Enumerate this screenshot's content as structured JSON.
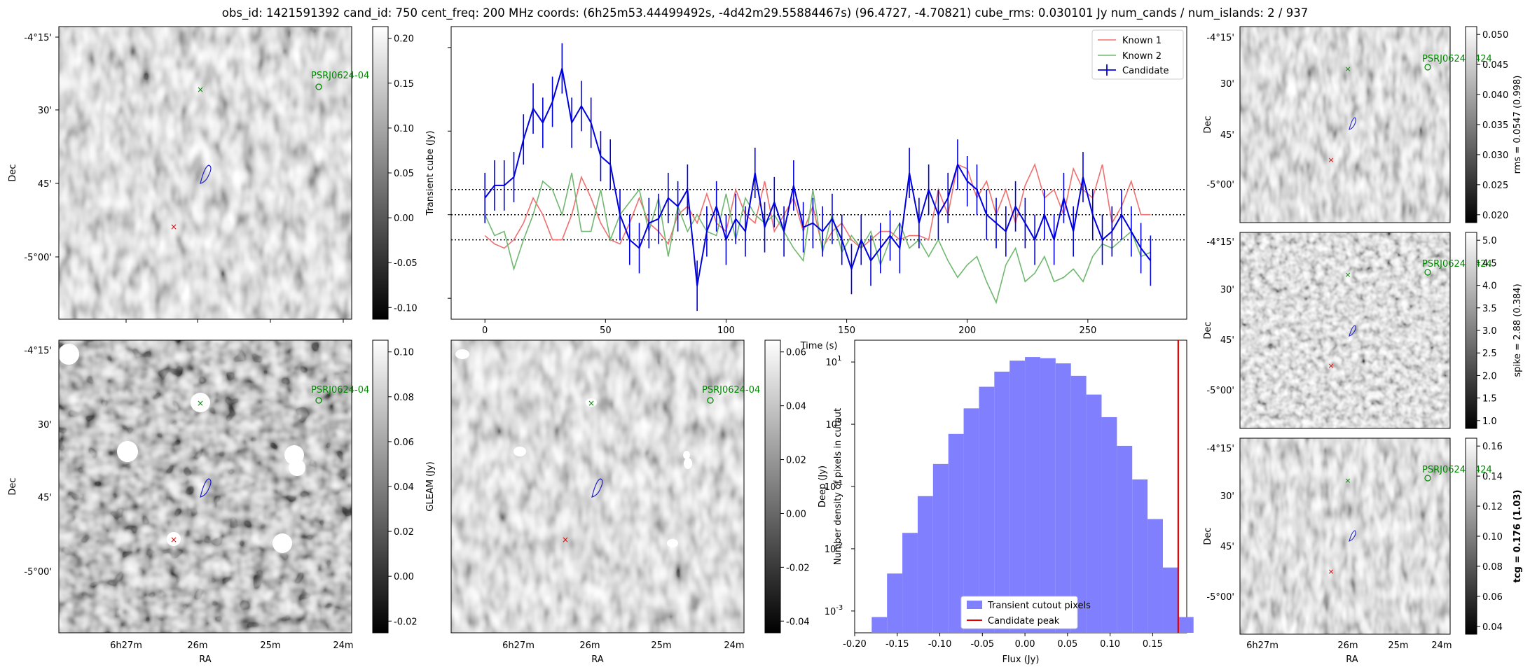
{
  "title": "obs_id: 1421591392 cand_id: 750 cent_freq: 200 MHz coords: (6h25m53.44499492s, -4d42m29.55884467s) (96.4727, -4.70821) cube_rms: 0.030101 Jy num_cands / num_islands: 2 / 937",
  "colors": {
    "known1": "#f07070",
    "known2": "#70b870",
    "candidate": "#0000dd",
    "hist": "#8080ff",
    "peak": "#e00000",
    "marker_green": "#008800",
    "marker_red": "#dd0000",
    "contour": "#2020cc"
  },
  "sky": {
    "dec_ticks": [
      "-4°15'",
      "30'",
      "45'",
      "-5°00'"
    ],
    "ra_ticks": [
      "6h27m",
      "26m",
      "25m",
      "24m"
    ],
    "xlabel": "RA",
    "ylabel": "Dec",
    "pulsar_label": "PSRJ0624-0424",
    "pulsar_label_mid": "PSRJ0624-04",
    "pulsar_label_short": "PSRJ0624-04"
  },
  "panels": {
    "top_left": {
      "cbar_ticks": [
        "0.20",
        "0.15",
        "0.10",
        "0.05",
        "0.00",
        "-0.05",
        "-0.10"
      ],
      "cbar_label": ""
    },
    "bottom_left": {
      "cbar_ticks": [
        "0.10",
        "0.08",
        "0.06",
        "0.04",
        "0.02",
        "0.00",
        "-0.02"
      ],
      "cbar_label": "GLEAM (Jy)"
    },
    "bottom_mid": {
      "cbar_ticks": [
        "0.06",
        "0.04",
        "0.02",
        "0.00",
        "-0.02",
        "-0.04"
      ],
      "cbar_label": "Deep (Jy)"
    },
    "right_top": {
      "cbar_ticks": [
        "0.050",
        "0.045",
        "0.040",
        "0.035",
        "0.030",
        "0.025",
        "0.020"
      ],
      "cbar_label": "rms = 0.0547 (0.998)"
    },
    "right_mid": {
      "cbar_ticks": [
        "5.0",
        "4.5",
        "4.0",
        "3.5",
        "3.0",
        "2.5",
        "2.0",
        "1.5",
        "1.0"
      ],
      "cbar_label": "spike = 2.88 (0.384)"
    },
    "right_bot": {
      "cbar_ticks": [
        "0.16",
        "0.14",
        "0.12",
        "0.10",
        "0.08",
        "0.06",
        "0.04"
      ],
      "cbar_label": "tcg = 0.176 (1.03)"
    }
  },
  "chart_data": [
    {
      "type": "line",
      "xlabel": "Time (s)",
      "ylabel": "Transient cube (Jy)",
      "xlim": [
        -14,
        291
      ],
      "ylim": [
        -0.125,
        0.225
      ],
      "xticks": [
        0,
        50,
        100,
        150,
        200,
        250
      ],
      "hlines": [
        0.030101,
        0,
        -0.030101
      ],
      "legend": [
        "Known 1",
        "Known 2",
        "Candidate"
      ],
      "x_step": 4,
      "series": [
        {
          "name": "Known 1",
          "values": [
            -0.025,
            -0.035,
            -0.04,
            -0.03,
            -0.01,
            0.02,
            0.0,
            -0.03,
            -0.03,
            0.0,
            0.045,
            0.02,
            -0.01,
            -0.03,
            -0.035,
            -0.01,
            0.02,
            -0.01,
            -0.02,
            -0.035,
            0.0,
            0.01,
            -0.01,
            0.025,
            -0.01,
            -0.02,
            0.03,
            0.0,
            -0.01,
            0.04,
            -0.02,
            0.0,
            0.02,
            -0.02,
            0.01,
            -0.04,
            -0.02,
            -0.01,
            -0.03,
            -0.04,
            -0.03,
            -0.02,
            -0.02,
            -0.03,
            -0.025,
            -0.025,
            -0.03,
            0.03,
            0.0,
            0.06,
            0.055,
            0.02,
            0.04,
            0.0,
            0.03,
            -0.01,
            0.035,
            0.06,
            0.02,
            0.03,
            0.0,
            0.055,
            0.03,
            0.02,
            0.06,
            -0.01,
            0.01,
            0.04,
            0.0,
            0.0
          ]
        },
        {
          "name": "Known 2",
          "values": [
            0.0,
            -0.025,
            -0.02,
            -0.065,
            -0.03,
            0.0,
            0.04,
            0.03,
            0.0,
            0.05,
            -0.02,
            -0.02,
            0.03,
            -0.03,
            0.0,
            0.015,
            0.03,
            -0.02,
            0.02,
            -0.05,
            0.01,
            -0.02,
            0.0,
            -0.02,
            -0.025,
            0.025,
            -0.03,
            0.02,
            0.0,
            -0.01,
            0.0,
            -0.02,
            -0.04,
            -0.055,
            0.03,
            -0.045,
            0.0,
            -0.045,
            -0.025,
            -0.04,
            -0.02,
            -0.06,
            -0.03,
            -0.01,
            -0.04,
            -0.03,
            -0.05,
            -0.03,
            -0.055,
            -0.075,
            -0.06,
            -0.05,
            -0.08,
            -0.105,
            -0.06,
            -0.04,
            -0.08,
            -0.07,
            -0.05,
            -0.08,
            -0.075,
            -0.065,
            -0.08,
            -0.05,
            -0.035,
            -0.04,
            -0.03,
            -0.02,
            -0.05,
            -0.045
          ]
        },
        {
          "name": "Candidate",
          "values": [
            0.02,
            0.035,
            0.035,
            0.045,
            0.09,
            0.127,
            0.11,
            0.135,
            0.175,
            0.11,
            0.13,
            0.11,
            0.07,
            0.06,
            0.0,
            -0.03,
            -0.04,
            -0.01,
            -0.005,
            0.02,
            0.01,
            0.03,
            -0.085,
            -0.02,
            0.01,
            -0.03,
            -0.005,
            -0.02,
            0.05,
            -0.015,
            0.015,
            -0.02,
            0.035,
            -0.015,
            -0.01,
            -0.02,
            -0.005,
            -0.03,
            -0.065,
            -0.03,
            -0.055,
            -0.04,
            -0.025,
            -0.04,
            0.05,
            -0.01,
            0.03,
            0.0,
            0.02,
            0.06,
            0.04,
            0.03,
            0.0,
            -0.01,
            -0.02,
            0.01,
            -0.01,
            -0.03,
            0.0,
            -0.03,
            0.02,
            -0.02,
            0.045,
            0.0,
            -0.03,
            -0.02,
            0.0,
            -0.02,
            -0.04,
            -0.055
          ]
        }
      ]
    },
    {
      "type": "bar",
      "xlabel": "Flux (Jy)",
      "ylabel": "Number density of pixels in cutout",
      "xlim": [
        -0.2,
        0.19
      ],
      "ylog": true,
      "ylim_log10": [
        -3.35,
        1.35
      ],
      "xticks": [
        "-0.20",
        "-0.15",
        "-0.10",
        "-0.05",
        "0.00",
        "0.05",
        "0.10",
        "0.15"
      ],
      "yticks": [
        -3,
        -2,
        -1,
        0,
        1
      ],
      "bin_start": -0.18,
      "bin_width": 0.018,
      "values": [
        0.0008,
        0.004,
        0.018,
        0.07,
        0.23,
        0.7,
        1.8,
        4.0,
        7.0,
        10.5,
        12.0,
        11.5,
        9.5,
        6.0,
        3.0,
        1.3,
        0.45,
        0.13,
        0.03,
        0.005,
        0.0008
      ],
      "peak": 0.18,
      "legend": [
        "Transient cutout pixels",
        "Candidate peak"
      ]
    }
  ]
}
